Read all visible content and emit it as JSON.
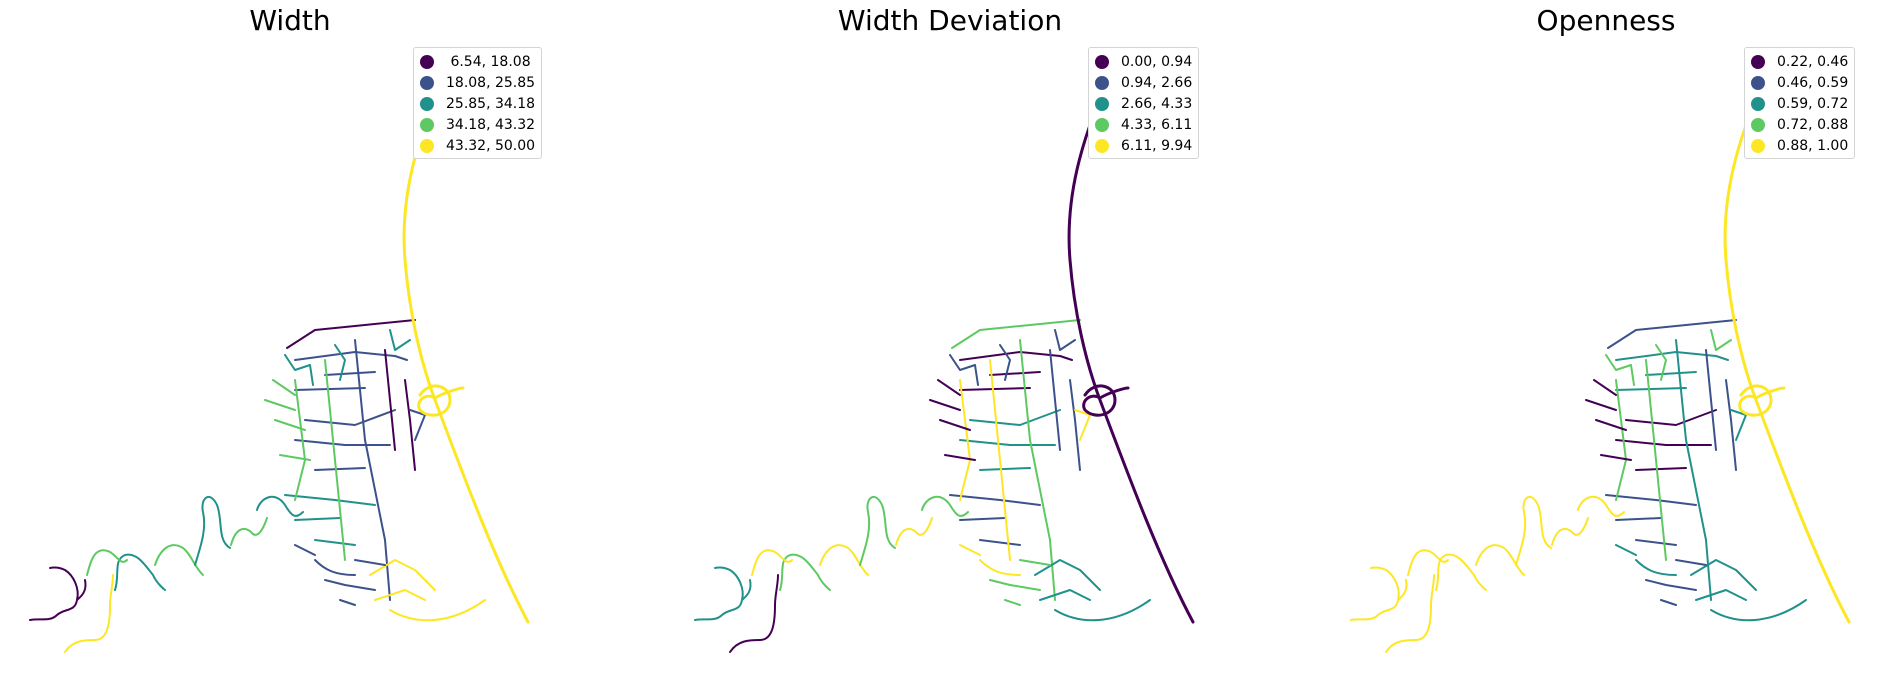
{
  "palette": [
    "#440154",
    "#3b528b",
    "#21918c",
    "#5ec962",
    "#fde725"
  ],
  "panels": [
    {
      "title": "Width",
      "legend": [
        {
          "label": " 6.54, 18.08",
          "color": "#440154"
        },
        {
          "label": "18.08, 25.85",
          "color": "#3b528b"
        },
        {
          "label": "25.85, 34.18",
          "color": "#21918c"
        },
        {
          "label": "34.18, 43.32",
          "color": "#5ec962"
        },
        {
          "label": "43.32, 50.00",
          "color": "#fde725"
        }
      ],
      "classes": {
        "highway": 4,
        "coastal": 0,
        "hill": 2,
        "grid": [
          0,
          1,
          1,
          2,
          3,
          1,
          0,
          3,
          4,
          1,
          2,
          1
        ]
      }
    },
    {
      "title": "Width Deviation",
      "legend": [
        {
          "label": "0.00, 0.94",
          "color": "#440154"
        },
        {
          "label": "0.94, 2.66",
          "color": "#3b528b"
        },
        {
          "label": "2.66, 4.33",
          "color": "#21918c"
        },
        {
          "label": "4.33, 6.11",
          "color": "#5ec962"
        },
        {
          "label": "6.11, 9.94",
          "color": "#fde725"
        }
      ],
      "classes": {
        "highway": 0,
        "coastal": 2,
        "hill": 3,
        "grid": [
          3,
          0,
          2,
          1,
          4,
          3,
          1,
          0,
          2,
          3,
          1,
          4
        ]
      }
    },
    {
      "title": "Openness",
      "legend": [
        {
          "label": "0.22, 0.46",
          "color": "#440154"
        },
        {
          "label": "0.46, 0.59",
          "color": "#3b528b"
        },
        {
          "label": "0.59, 0.72",
          "color": "#21918c"
        },
        {
          "label": "0.72, 0.88",
          "color": "#5ec962"
        },
        {
          "label": "0.88, 1.00",
          "color": "#fde725"
        }
      ],
      "classes": {
        "highway": 4,
        "coastal": 4,
        "hill": 4,
        "grid": [
          1,
          2,
          0,
          1,
          3,
          2,
          1,
          0,
          2,
          1,
          3,
          2
        ]
      }
    }
  ]
}
